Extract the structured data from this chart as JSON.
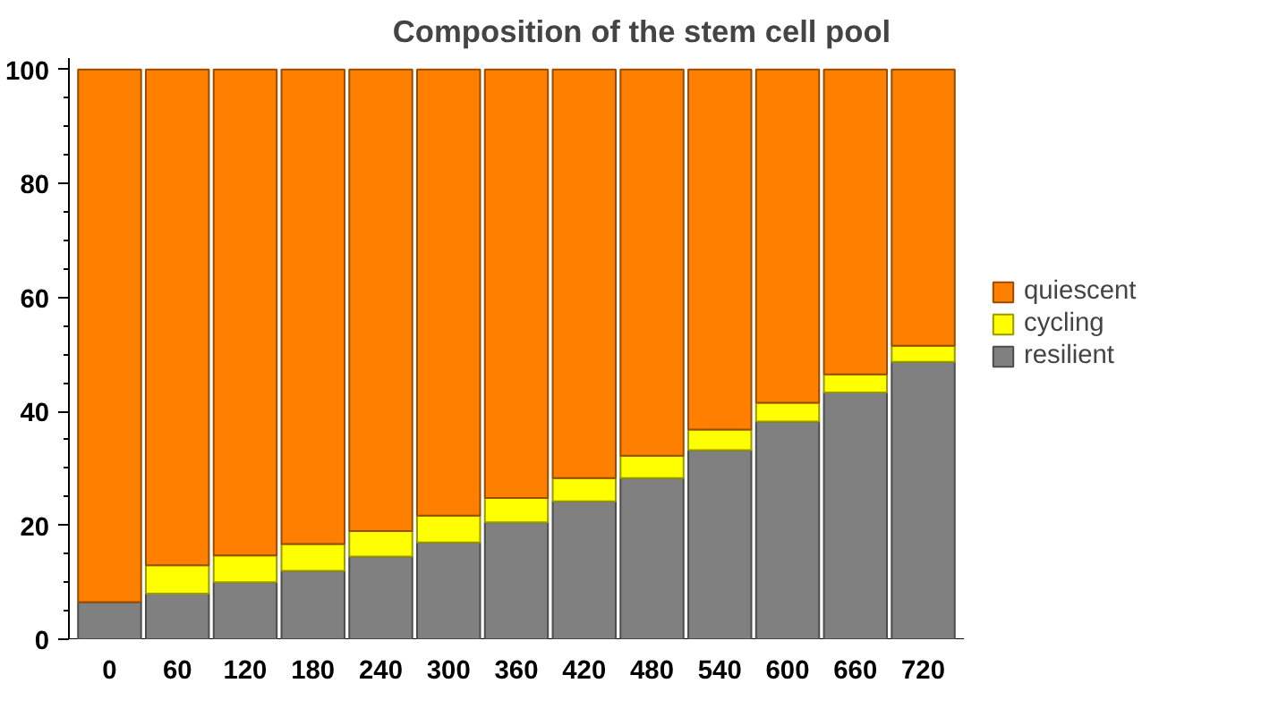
{
  "chart_data": {
    "type": "bar",
    "title": "Composition of the stem cell pool",
    "stacked": true,
    "categories": [
      "0",
      "60",
      "120",
      "180",
      "240",
      "300",
      "360",
      "420",
      "480",
      "540",
      "600",
      "660",
      "720"
    ],
    "series": [
      {
        "name": "resilient",
        "color": "#808080",
        "values": [
          6.5,
          8,
          10,
          12,
          14.5,
          17,
          20.5,
          24.2,
          28.3,
          33.2,
          38.2,
          43.3,
          48.7
        ]
      },
      {
        "name": "cycling",
        "color": "#ffff00",
        "values": [
          null,
          5,
          4.7,
          4.7,
          4.5,
          4.7,
          4.3,
          4.1,
          3.9,
          3.6,
          3.3,
          3.2,
          2.8
        ]
      },
      {
        "name": "quiescent",
        "color": "#ff7f00",
        "values": [
          93.5,
          87,
          85.3,
          83.3,
          81,
          78.3,
          75.2,
          71.7,
          67.8,
          63.2,
          58.5,
          53.5,
          48.5
        ]
      }
    ],
    "ylim": [
      0,
      102
    ],
    "yticks": [
      0,
      {
        "value": 5,
        "label": null
      },
      {
        "value": 10,
        "label": null
      },
      {
        "value": 15,
        "label": null
      },
      20,
      {
        "value": 25,
        "label": null
      },
      {
        "value": 30,
        "label": null
      },
      {
        "value": 35,
        "label": null
      },
      40,
      {
        "value": 45,
        "label": null
      },
      {
        "value": 50,
        "label": null
      },
      {
        "value": 55,
        "label": null
      },
      60,
      {
        "value": 65,
        "label": null
      },
      {
        "value": 70,
        "label": null
      },
      {
        "value": 75,
        "label": null
      },
      80,
      {
        "value": 85,
        "label": null
      },
      {
        "value": 90,
        "label": null
      },
      {
        "value": 95,
        "label": null
      },
      100
    ],
    "grid": false,
    "legend": "right"
  }
}
